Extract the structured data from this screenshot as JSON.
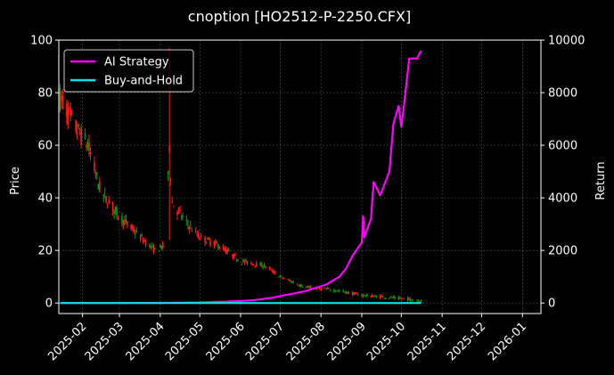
{
  "chart_data": {
    "type": "candlestick+line",
    "title": "cnoption [HO2512-P-2250.CFX]",
    "ylabel_left": "Price",
    "ylabel_right": "Return",
    "ylim_left": [
      -4,
      100
    ],
    "ylim_right": [
      -400,
      10000
    ],
    "yticks_left": [
      0,
      20,
      40,
      60,
      80,
      100
    ],
    "yticks_right": [
      0,
      2000,
      4000,
      6000,
      8000,
      10000
    ],
    "xlim": [
      "2025-01-14",
      "2026-01-15"
    ],
    "xticks": [
      "2025-02",
      "2025-03",
      "2025-04",
      "2025-05",
      "2025-06",
      "2025-07",
      "2025-08",
      "2025-09",
      "2025-10",
      "2025-11",
      "2025-12",
      "2026-01"
    ],
    "grid": true,
    "legend_position": "top-left",
    "colors": {
      "background": "#000000",
      "up": "#00a000",
      "down": "#ff1a1a",
      "ai_strategy": "#ff00ff",
      "buy_and_hold": "#00e5e5",
      "grid": "#555555",
      "text": "#ffffff"
    },
    "series": [
      {
        "name": "AI Strategy",
        "axis": "right",
        "color": "#ff00ff",
        "points": [
          [
            "2025-01-15",
            0
          ],
          [
            "2025-03-01",
            0
          ],
          [
            "2025-04-01",
            5
          ],
          [
            "2025-05-01",
            20
          ],
          [
            "2025-05-20",
            50
          ],
          [
            "2025-06-10",
            100
          ],
          [
            "2025-06-25",
            200
          ],
          [
            "2025-07-05",
            300
          ],
          [
            "2025-07-20",
            450
          ],
          [
            "2025-08-05",
            700
          ],
          [
            "2025-08-15",
            1000
          ],
          [
            "2025-08-20",
            1300
          ],
          [
            "2025-08-25",
            1800
          ],
          [
            "2025-09-01",
            2300
          ],
          [
            "2025-09-02",
            3300
          ],
          [
            "2025-09-03",
            2500
          ],
          [
            "2025-09-08",
            3200
          ],
          [
            "2025-09-10",
            4600
          ],
          [
            "2025-09-15",
            4100
          ],
          [
            "2025-09-22",
            5000
          ],
          [
            "2025-09-25",
            6800
          ],
          [
            "2025-09-29",
            7500
          ],
          [
            "2025-10-01",
            6700
          ],
          [
            "2025-10-03",
            7500
          ],
          [
            "2025-10-07",
            9300
          ],
          [
            "2025-10-13",
            9300
          ],
          [
            "2025-10-16",
            9600
          ]
        ]
      },
      {
        "name": "Buy-and-Hold",
        "axis": "right",
        "color": "#00e5e5",
        "points": [
          [
            "2025-01-15",
            0
          ],
          [
            "2025-10-16",
            0
          ]
        ]
      }
    ],
    "ohlc_trend": [
      [
        "2025-01-15",
        78
      ],
      [
        "2025-01-25",
        68
      ],
      [
        "2025-02-05",
        60
      ],
      [
        "2025-02-15",
        42
      ],
      [
        "2025-03-01",
        33
      ],
      [
        "2025-03-15",
        26
      ],
      [
        "2025-03-28",
        20
      ],
      [
        "2025-04-05",
        22
      ],
      [
        "2025-04-08",
        60
      ],
      [
        "2025-04-10",
        38
      ],
      [
        "2025-04-20",
        31
      ],
      [
        "2025-05-01",
        25
      ],
      [
        "2025-05-15",
        22
      ],
      [
        "2025-06-01",
        16
      ],
      [
        "2025-06-20",
        14
      ],
      [
        "2025-07-01",
        10
      ],
      [
        "2025-07-20",
        6
      ],
      [
        "2025-08-10",
        5
      ],
      [
        "2025-09-01",
        3
      ],
      [
        "2025-10-16",
        1
      ]
    ]
  }
}
